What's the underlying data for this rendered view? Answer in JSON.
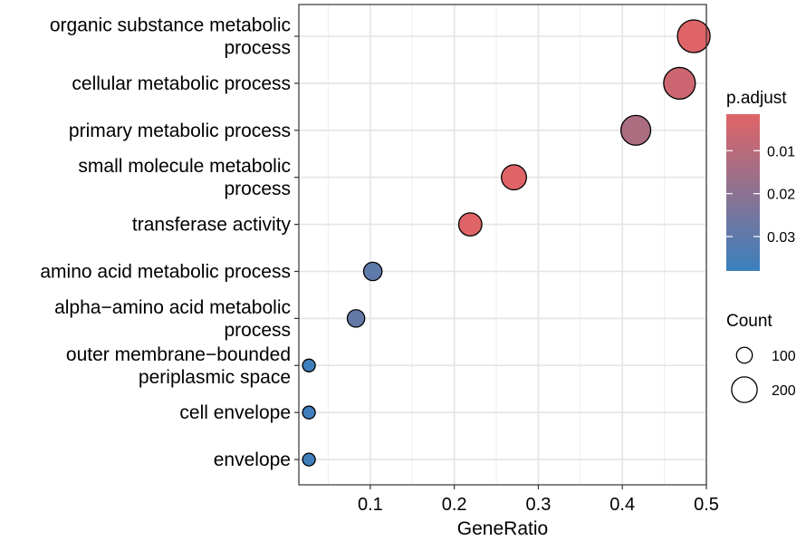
{
  "chart_data": {
    "type": "scatter",
    "xlabel": "GeneRatio",
    "xlim": [
      0.015,
      0.5
    ],
    "xticks": [
      "0.1",
      "0.2",
      "0.3",
      "0.4",
      "0.5"
    ],
    "xtick_values": [
      0.1,
      0.2,
      0.3,
      0.4,
      0.5
    ],
    "grid": true,
    "legend_position": "right",
    "color_legend": {
      "title": "p.adjust",
      "labels": [
        "0.01",
        "0.02",
        "0.03"
      ],
      "values": [
        0.01,
        0.02,
        0.03
      ],
      "range": [
        0.0015,
        0.038
      ],
      "low_color": "#e06466",
      "high_color": "#3a80bd"
    },
    "size_legend": {
      "title": "Count",
      "labels": [
        "100",
        "200"
      ],
      "values": [
        100,
        200
      ]
    },
    "terms": [
      {
        "label_lines": [
          "organic substance metabolic",
          "process"
        ],
        "gene_ratio": 0.485,
        "count": 230,
        "p_adjust": 0.002
      },
      {
        "label_lines": [
          "cellular metabolic process"
        ],
        "gene_ratio": 0.468,
        "count": 220,
        "p_adjust": 0.006
      },
      {
        "label_lines": [
          "primary metabolic process"
        ],
        "gene_ratio": 0.416,
        "count": 200,
        "p_adjust": 0.013
      },
      {
        "label_lines": [
          "small molecule metabolic",
          "process"
        ],
        "gene_ratio": 0.271,
        "count": 150,
        "p_adjust": 0.002
      },
      {
        "label_lines": [
          "transferase activity"
        ],
        "gene_ratio": 0.219,
        "count": 130,
        "p_adjust": 0.002
      },
      {
        "label_lines": [
          "amino acid metabolic process"
        ],
        "gene_ratio": 0.103,
        "count": 80,
        "p_adjust": 0.03
      },
      {
        "label_lines": [
          "alpha−amino acid metabolic",
          "process"
        ],
        "gene_ratio": 0.083,
        "count": 70,
        "p_adjust": 0.029
      },
      {
        "label_lines": [
          "outer membrane−bounded",
          "periplasmic space"
        ],
        "gene_ratio": 0.027,
        "count": 20,
        "p_adjust": 0.037
      },
      {
        "label_lines": [
          "cell envelope"
        ],
        "gene_ratio": 0.027,
        "count": 20,
        "p_adjust": 0.037
      },
      {
        "label_lines": [
          "envelope"
        ],
        "gene_ratio": 0.027,
        "count": 20,
        "p_adjust": 0.037
      }
    ]
  }
}
